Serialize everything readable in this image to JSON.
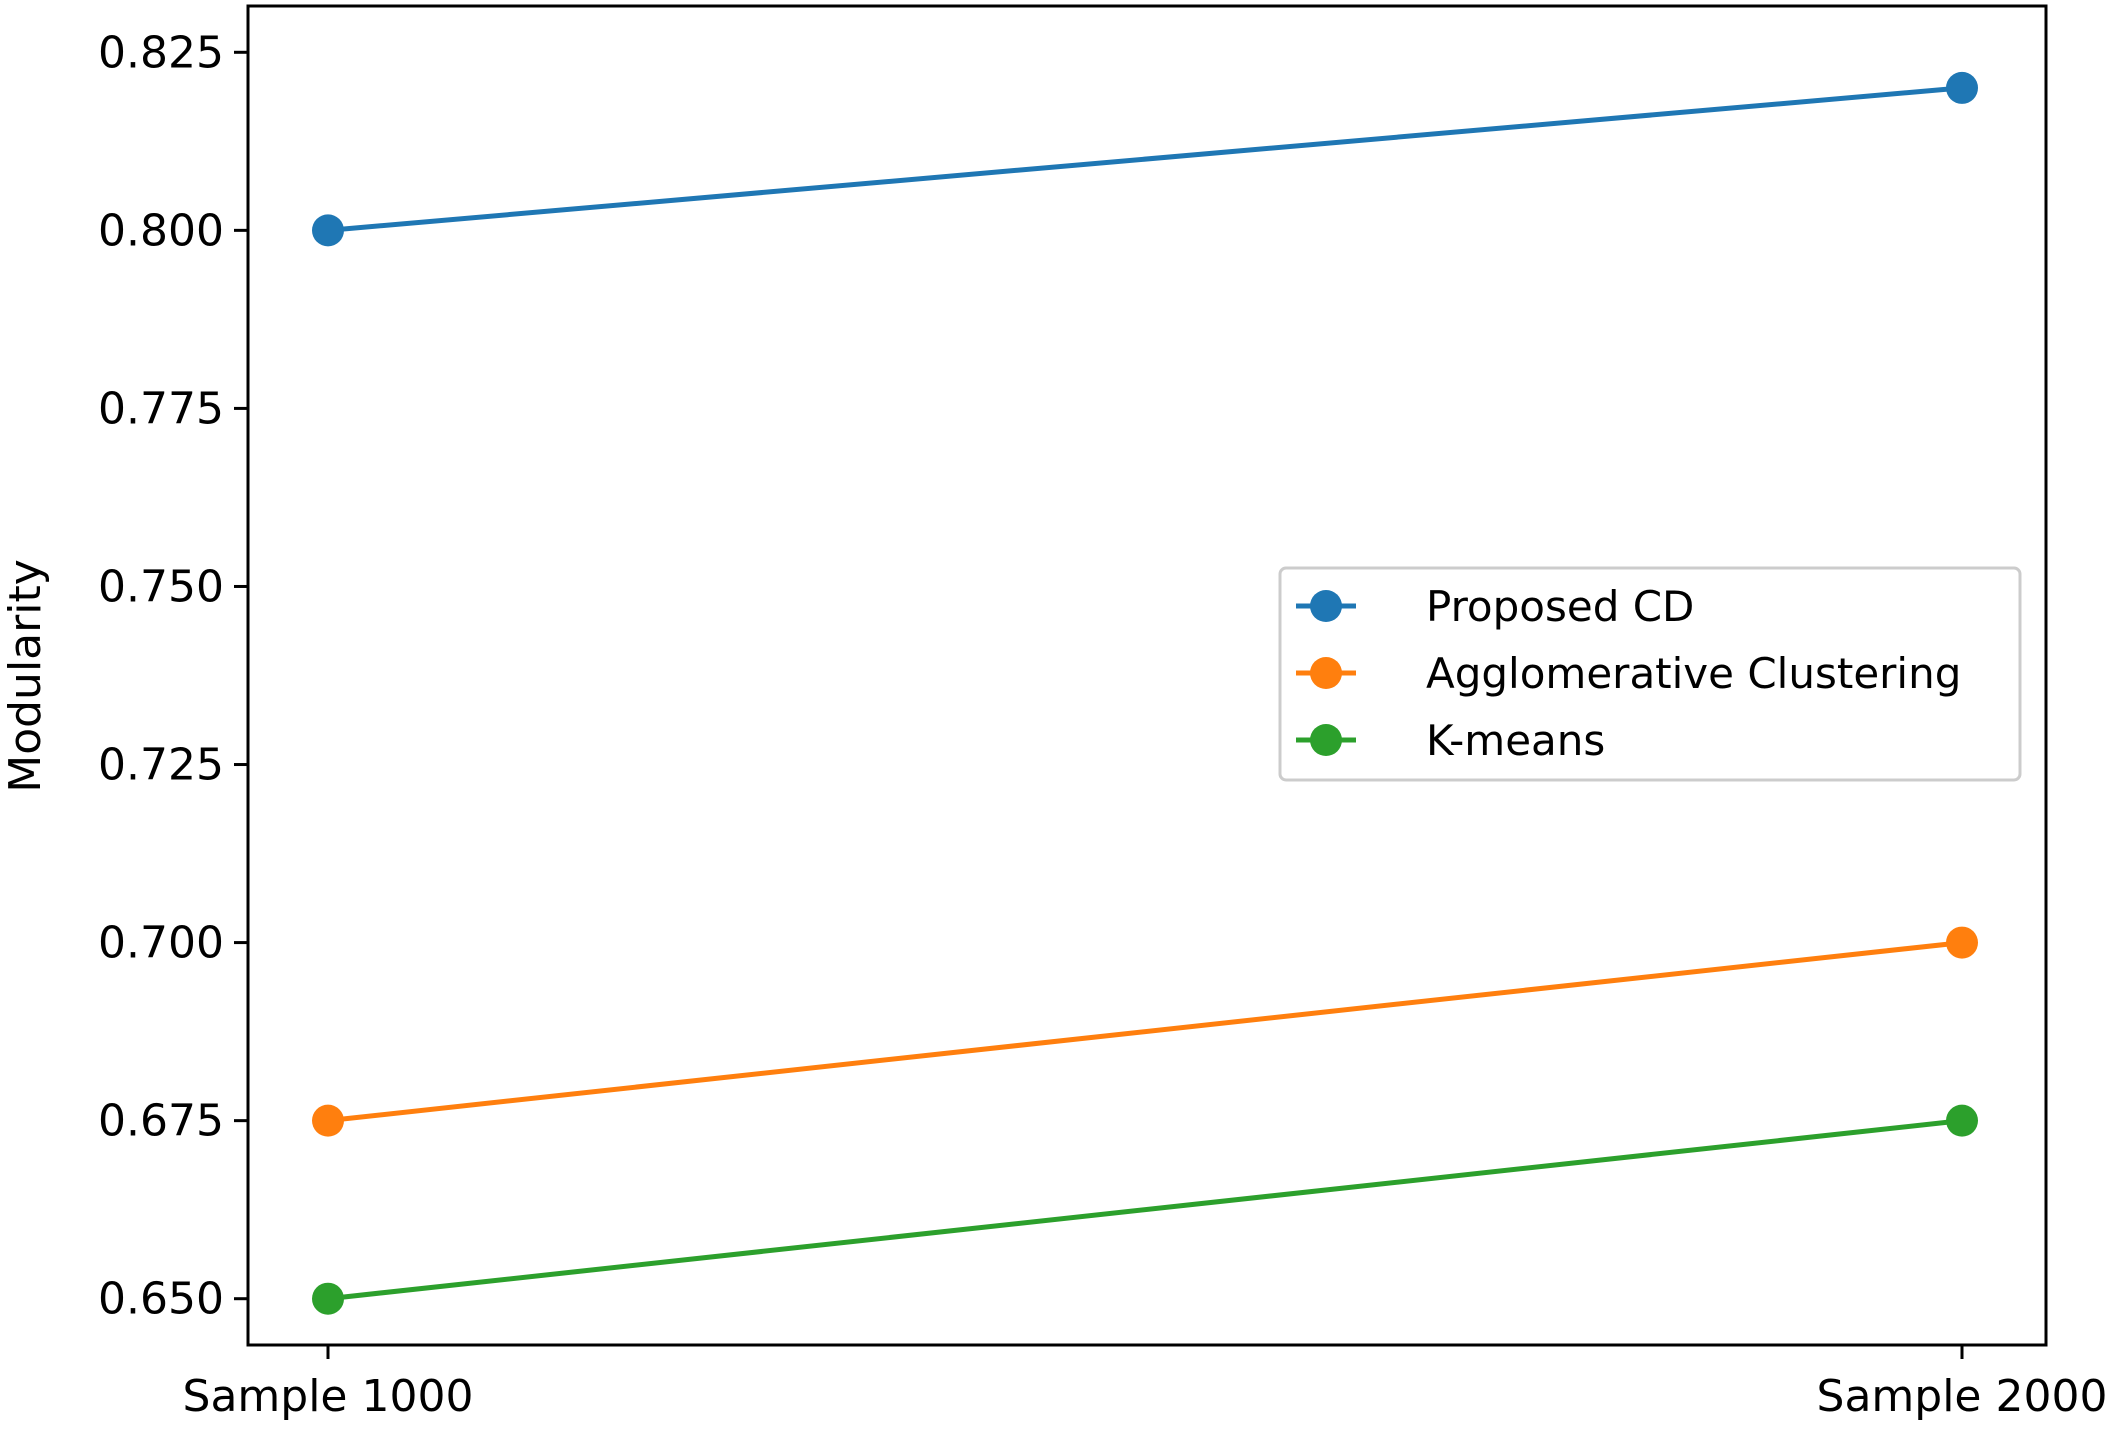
{
  "chart_data": {
    "type": "line",
    "title": "",
    "xlabel": "",
    "ylabel": "Modularity",
    "categories": [
      "Sample 1000",
      "Sample 2000"
    ],
    "ylim": [
      0.6435,
      0.8315
    ],
    "yticks": [
      0.65,
      0.675,
      0.7,
      0.725,
      0.75,
      0.775,
      0.8,
      0.825
    ],
    "ytick_labels": [
      "0.650",
      "0.675",
      "0.700",
      "0.725",
      "0.750",
      "0.775",
      "0.800",
      "0.825"
    ],
    "grid": false,
    "legend_position": "center-right",
    "series": [
      {
        "name": "Proposed CD",
        "values": [
          0.8,
          0.82
        ],
        "color": "#1f77b4"
      },
      {
        "name": "Agglomerative Clustering",
        "values": [
          0.675,
          0.7
        ],
        "color": "#ff7f0e"
      },
      {
        "name": "K-means",
        "values": [
          0.65,
          0.675
        ],
        "color": "#2ca02c"
      }
    ]
  }
}
